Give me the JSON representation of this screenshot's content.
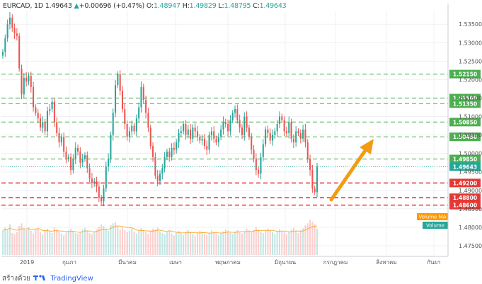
{
  "header": {
    "symbol": "EURCAD",
    "interval": "1D",
    "last": "1.49643",
    "change": "+0.00696 (+0.47%)",
    "o_label": "O:",
    "o_value": "1.48947",
    "h_label": "H:",
    "h_value": "1.49829",
    "l_label": "L:",
    "l_value": "1.48795",
    "c_label": "C:",
    "c_value": "1.49643"
  },
  "footer": {
    "text": "สร้างด้วย",
    "brand": "TradingView"
  },
  "chart_data": {
    "type": "candlestick",
    "title": "",
    "x_tick_labels": [
      "2019",
      "กุมภา",
      "มีนาคม",
      "เมษา",
      "พฤษภาคม",
      "มิถุนายน",
      "กรกฎาคม",
      "สิงหาคม",
      "กันยา"
    ],
    "y_tick_labels": [
      "1.53500",
      "1.53000",
      "1.52500",
      "1.52000",
      "1.51500",
      "1.51000",
      "1.50500",
      "1.50000",
      "1.49500",
      "1.49000",
      "1.48500",
      "1.48000",
      "1.47500"
    ],
    "ylim": [
      1.4725,
      1.5385
    ],
    "grid": true,
    "levels": [
      {
        "price": 1.5215,
        "label": "1.52150",
        "style": "dashed",
        "color": "#4caf50"
      },
      {
        "price": 1.515,
        "label": "1.51500",
        "style": "dashed",
        "color": "#4caf50"
      },
      {
        "price": 1.5135,
        "label": "1.51350",
        "style": "dashed",
        "color": "#4caf50"
      },
      {
        "price": 1.5085,
        "label": "1.50850",
        "style": "dashed",
        "color": "#4caf50"
      },
      {
        "price": 1.5045,
        "label": "1.50450",
        "style": "dashed",
        "color": "#4caf50"
      },
      {
        "price": 1.4985,
        "label": "1.49850",
        "style": "dashed",
        "color": "#4caf50"
      },
      {
        "price": 1.492,
        "label": "1.49200",
        "style": "dashed",
        "color": "#e53935"
      },
      {
        "price": 1.488,
        "label": "1.48800",
        "style": "dashed",
        "color": "#e53935"
      },
      {
        "price": 1.486,
        "label": "1.48600",
        "style": "dashed",
        "color": "#e53935"
      }
    ],
    "last_price": {
      "price": 1.49643,
      "label": "1.49643"
    },
    "indicators": [
      {
        "label": "Volume MA",
        "color": "#ff9800"
      },
      {
        "label": "Volume",
        "color": "#26a69a"
      }
    ],
    "close": [
      1.5275,
      1.5312,
      1.535,
      1.5368,
      1.534,
      1.5325,
      1.5318,
      1.523,
      1.516,
      1.5205,
      1.5195,
      1.521,
      1.518,
      1.5125,
      1.511,
      1.5095,
      1.507,
      1.5085,
      1.506,
      1.5115,
      1.512,
      1.514,
      1.5085,
      1.5055,
      1.503,
      1.5045,
      1.5005,
      1.4985,
      1.499,
      1.4955,
      1.4985,
      1.5015,
      1.5005,
      1.4975,
      1.4985,
      1.4995,
      1.496,
      1.4932,
      1.492,
      1.4925,
      1.491,
      1.488,
      1.487,
      1.4905,
      1.4965,
      1.4985,
      1.505,
      1.511,
      1.5185,
      1.5215,
      1.517,
      1.512,
      1.508,
      1.5045,
      1.506,
      1.5075,
      1.506,
      1.5095,
      1.5125,
      1.518,
      1.5145,
      1.511,
      1.507,
      1.502,
      1.499,
      1.494,
      1.4925,
      1.4945,
      1.496,
      1.499,
      1.5005,
      1.499,
      1.5015,
      1.501,
      1.503,
      1.5055,
      1.506,
      1.508,
      1.505,
      1.5065,
      1.504,
      1.507,
      1.506,
      1.5045,
      1.5035,
      1.504,
      1.502,
      1.501,
      1.505,
      1.506,
      1.504,
      1.503,
      1.5045,
      1.5065,
      1.5085,
      1.508,
      1.506,
      1.509,
      1.511,
      1.512,
      1.509,
      1.507,
      1.505,
      1.51,
      1.507,
      1.5045,
      1.501,
      1.4985,
      1.4955,
      1.4945,
      1.499,
      1.5025,
      1.5065,
      1.5055,
      1.5035,
      1.505,
      1.506,
      1.508,
      1.51,
      1.509,
      1.506,
      1.5055,
      1.5085,
      1.504,
      1.503,
      1.506,
      1.5055,
      1.504,
      1.5065,
      1.503,
      1.4985,
      1.4955,
      1.4905,
      1.4895,
      1.4964
    ],
    "volume": [
      0.55,
      0.62,
      0.58,
      0.7,
      0.5,
      0.48,
      0.52,
      0.66,
      0.72,
      0.6,
      0.57,
      0.63,
      0.55,
      0.49,
      0.58,
      0.61,
      0.52,
      0.47,
      0.56,
      0.6,
      0.54,
      0.5,
      0.62,
      0.58,
      0.53,
      0.49,
      0.45,
      0.51,
      0.56,
      0.6,
      0.54,
      0.5,
      0.48,
      0.52,
      0.58,
      0.62,
      0.55,
      0.5,
      0.47,
      0.53,
      0.59,
      0.64,
      0.7,
      0.66,
      0.6,
      0.55,
      0.68,
      0.72,
      0.75,
      0.65,
      0.58,
      0.62,
      0.57,
      0.52,
      0.55,
      0.6,
      0.53,
      0.49,
      0.56,
      0.61,
      0.57,
      0.52,
      0.48,
      0.55,
      0.6,
      0.58,
      0.62,
      0.54,
      0.5,
      0.47,
      0.52,
      0.56,
      0.49,
      0.45,
      0.51,
      0.55,
      0.5,
      0.46,
      0.52,
      0.57,
      0.53,
      0.48,
      0.44,
      0.5,
      0.55,
      0.52,
      0.48,
      0.46,
      0.51,
      0.56,
      0.53,
      0.49,
      0.45,
      0.5,
      0.54,
      0.58,
      0.55,
      0.51,
      0.48,
      0.53,
      0.57,
      0.52,
      0.49,
      0.54,
      0.6,
      0.56,
      0.52,
      0.58,
      0.63,
      0.57,
      0.53,
      0.5,
      0.55,
      0.6,
      0.56,
      0.52,
      0.48,
      0.54,
      0.59,
      0.55,
      0.51,
      0.47,
      0.53,
      0.58,
      0.62,
      0.55,
      0.5,
      0.56,
      0.61,
      0.68,
      0.72,
      0.8,
      0.76,
      0.7,
      0.6
    ]
  }
}
